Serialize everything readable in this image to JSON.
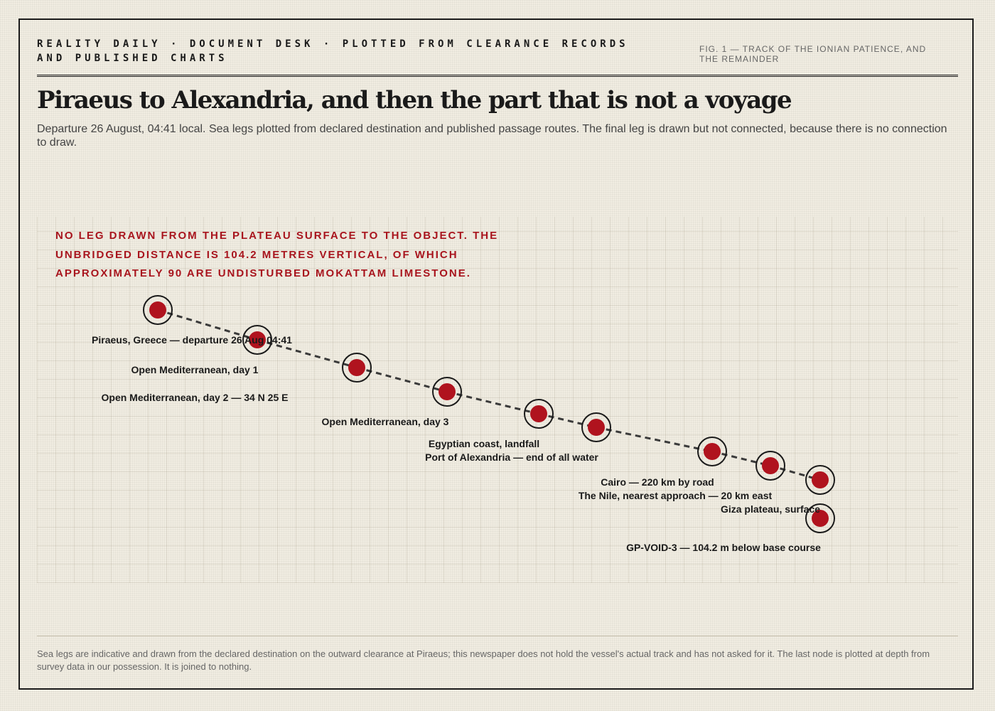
{
  "header": {
    "kicker": "REALITY DAILY · DOCUMENT DESK · PLOTTED FROM CLEARANCE RECORDS AND PUBLISHED CHARTS",
    "fig_label": "FIG. 1 — TRACK OF THE IONIAN PATIENCE, AND THE REMAINDER"
  },
  "headline": "Piraeus to Alexandria, and then the part that is not a voyage",
  "dek": "Departure 26 August, 04:41 local. Sea legs plotted from declared destination and published passage routes. The final leg is drawn but not connected, because there is no connection to draw.",
  "callout": "NO LEG DRAWN FROM THE PLATEAU SURFACE TO THE OBJECT. THE UNBRIDGED DISTANCE IS 104.2 METRES VERTICAL, OF WHICH APPROXIMATELY 90 ARE UNDISTURBED MOKATTAM LIMESTONE.",
  "footnote": "Sea legs are indicative and drawn from the declared destination on the outward clearance at Piraeus; this newspaper does not hold the vessel's actual track and has not asked for it. The last node is plotted at depth from survey data in our possession. It is joined to nothing.",
  "colors": {
    "node_fill": "#b0131e",
    "ring": "#1a1a1a",
    "track": "#3a3a3a",
    "callout": "#a8141d",
    "grid": "#e6e0cf"
  },
  "track": {
    "connected_node_count": 9,
    "nodes": [
      {
        "label": "Piraeus, Greece — departure 26 Aug 04:41"
      },
      {
        "label": "Open Mediterranean, day 1"
      },
      {
        "label": "Open Mediterranean, day 2 — 34 N 25 E"
      },
      {
        "label": "Open Mediterranean, day 3"
      },
      {
        "label": "Egyptian coast, landfall"
      },
      {
        "label": "Port of Alexandria — end of all water"
      },
      {
        "label": "Cairo — 220 km by road"
      },
      {
        "label": "The Nile, nearest approach — 20 km east"
      },
      {
        "label": "Giza plateau, surface"
      },
      {
        "label": "GP-VOID-3 — 104.2 m below base course"
      }
    ]
  }
}
